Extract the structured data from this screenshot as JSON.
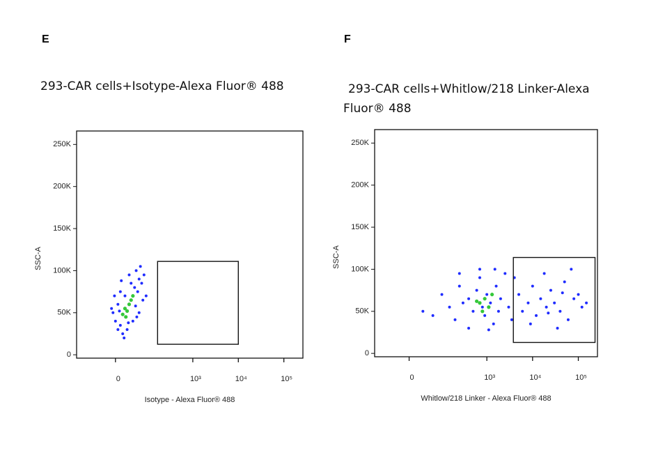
{
  "charts": [
    {
      "type": "scatter",
      "label": "E",
      "title": "293-CAR cells+Isotype-Alexa Fluor® 488",
      "xlabel": "Isotype - Alexa Fluor® 488",
      "ylabel": "SSC-A",
      "xscale": "biexponential",
      "xlim": [
        -140,
        262144
      ],
      "ylim": [
        -4000,
        266000
      ],
      "xticks": [
        0,
        {
          "value": 1000,
          "label": "10³"
        },
        {
          "value": 10000,
          "label": "10⁴"
        },
        {
          "value": 100000,
          "label": "10⁵"
        }
      ],
      "yticks": [
        {
          "value": 0,
          "label": "0"
        },
        {
          "value": 50000,
          "label": "50K"
        },
        {
          "value": 100000,
          "label": "100K"
        },
        {
          "value": 150000,
          "label": "150K"
        },
        {
          "value": 200000,
          "label": "200K"
        },
        {
          "value": 250000,
          "label": "250K"
        }
      ],
      "points": {
        "color": "#1f2cff",
        "x": [
          -5,
          0,
          5,
          10,
          -8,
          45,
          60,
          55,
          70,
          50,
          30,
          10,
          5,
          15,
          25,
          40,
          60,
          75,
          80,
          65,
          -2,
          12,
          35,
          48,
          28,
          20,
          8,
          52,
          90,
          18
        ],
        "y": [
          50000,
          40000,
          60000,
          35000,
          55000,
          80000,
          90000,
          75000,
          85000,
          100000,
          95000,
          75000,
          30000,
          25000,
          30000,
          40000,
          50000,
          65000,
          95000,
          105000,
          70000,
          88000,
          85000,
          58000,
          38000,
          70000,
          52000,
          45000,
          70000,
          20000
        ]
      },
      "core": {
        "color": "#35c83a",
        "x": [
          20,
          30,
          15,
          35,
          25,
          40,
          22
        ],
        "y": [
          55000,
          60000,
          48000,
          65000,
          52000,
          70000,
          45000
        ]
      },
      "gate": {
        "x": [
          166,
          10000
        ],
        "y": [
          12500,
          111000
        ]
      }
    },
    {
      "type": "scatter",
      "label": "F",
      "title": "293-CAR cells+Whitlow/218 Linker-Alexa Fluor® 488",
      "xlabel": "Whitlow/218 Linker - Alexa Fluor® 488",
      "ylabel": "SSC-A",
      "xscale": "biexponential",
      "xlim": [
        -110,
        262144
      ],
      "ylim": [
        -4000,
        266000
      ],
      "xticks": [
        0,
        {
          "value": 1000,
          "label": "10³"
        },
        {
          "value": 10000,
          "label": "10⁴"
        },
        {
          "value": 100000,
          "label": "10⁵"
        }
      ],
      "yticks": [
        {
          "value": 0,
          "label": "0"
        },
        {
          "value": 50000,
          "label": "50K"
        },
        {
          "value": 100000,
          "label": "100K"
        },
        {
          "value": 150000,
          "label": "150K"
        },
        {
          "value": 200000,
          "label": "200K"
        },
        {
          "value": 250000,
          "label": "250K"
        }
      ],
      "points": {
        "color": "#1f2cff",
        "x": [
          30,
          60,
          100,
          150,
          200,
          250,
          300,
          400,
          500,
          600,
          700,
          800,
          900,
          1000,
          1200,
          1400,
          1600,
          1800,
          2000,
          2500,
          3000,
          3500,
          400,
          1100,
          250,
          5000,
          6000,
          8000,
          10000,
          12000,
          15000,
          20000,
          25000,
          30000,
          40000,
          50000,
          60000,
          80000,
          100000,
          120000,
          150000,
          18000,
          35000,
          70000,
          9000,
          45000,
          22000,
          4000,
          1500,
          700
        ],
        "y": [
          50000,
          45000,
          70000,
          55000,
          40000,
          80000,
          60000,
          65000,
          50000,
          75000,
          90000,
          55000,
          45000,
          70000,
          60000,
          35000,
          80000,
          50000,
          65000,
          95000,
          55000,
          40000,
          30000,
          28000,
          95000,
          70000,
          50000,
          60000,
          80000,
          45000,
          65000,
          55000,
          75000,
          60000,
          50000,
          85000,
          40000,
          65000,
          70000,
          55000,
          60000,
          95000,
          30000,
          100000,
          35000,
          72000,
          48000,
          90000,
          100000,
          100000
        ]
      },
      "core": {
        "color": "#35c83a",
        "x": [
          700,
          900,
          1100,
          800,
          1300,
          600
        ],
        "y": [
          60000,
          65000,
          55000,
          50000,
          70000,
          62000
        ]
      },
      "gate": {
        "x": [
          3800,
          232000
        ],
        "y": [
          13000,
          114000
        ]
      }
    }
  ]
}
